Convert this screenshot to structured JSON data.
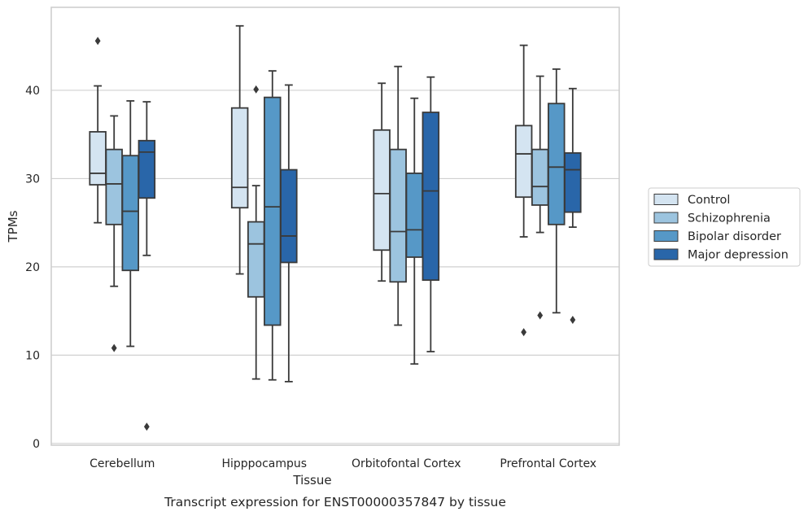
{
  "caption": "Transcript expression for ENST00000357847 by tissue",
  "chart_data": {
    "type": "box",
    "xlabel": "Tissue",
    "ylabel": "TPMs",
    "ylim": [
      -0.2,
      49.4
    ],
    "yticks": [
      0,
      10,
      20,
      30,
      40
    ],
    "grid": "horizontal",
    "legend_position": "right",
    "categories": [
      "Cerebellum",
      "Hipppocampus",
      "Orbitofontal Cortex",
      "Prefrontal Cortex"
    ],
    "series": [
      {
        "name": "Control",
        "color": "#d4e4f1",
        "boxes": [
          {
            "whisker_low": 25.0,
            "q1": 29.3,
            "median": 30.6,
            "q3": 35.3,
            "whisker_high": 40.5,
            "outliers": [
              45.6
            ]
          },
          {
            "whisker_low": 19.2,
            "q1": 26.7,
            "median": 29.0,
            "q3": 38.0,
            "whisker_high": 47.3,
            "outliers": []
          },
          {
            "whisker_low": 18.4,
            "q1": 21.9,
            "median": 28.3,
            "q3": 35.5,
            "whisker_high": 40.8,
            "outliers": []
          },
          {
            "whisker_low": 23.4,
            "q1": 27.9,
            "median": 32.8,
            "q3": 36.0,
            "whisker_high": 45.1,
            "outliers": [
              12.6
            ]
          }
        ]
      },
      {
        "name": "Schizophrenia",
        "color": "#9cc4df",
        "boxes": [
          {
            "whisker_low": 17.8,
            "q1": 24.8,
            "median": 29.4,
            "q3": 33.3,
            "whisker_high": 37.1,
            "outliers": [
              10.8
            ]
          },
          {
            "whisker_low": 7.3,
            "q1": 16.6,
            "median": 22.6,
            "q3": 25.1,
            "whisker_high": 29.2,
            "outliers": [
              40.1
            ]
          },
          {
            "whisker_low": 13.4,
            "q1": 18.3,
            "median": 24.0,
            "q3": 33.3,
            "whisker_high": 42.7,
            "outliers": []
          },
          {
            "whisker_low": 23.9,
            "q1": 27.0,
            "median": 29.1,
            "q3": 33.3,
            "whisker_high": 41.6,
            "outliers": [
              14.5
            ]
          }
        ]
      },
      {
        "name": "Bipolar disorder",
        "color": "#5698c7",
        "boxes": [
          {
            "whisker_low": 11.0,
            "q1": 19.6,
            "median": 26.3,
            "q3": 32.6,
            "whisker_high": 38.8,
            "outliers": []
          },
          {
            "whisker_low": 7.2,
            "q1": 13.4,
            "median": 26.8,
            "q3": 39.2,
            "whisker_high": 42.2,
            "outliers": []
          },
          {
            "whisker_low": 9.0,
            "q1": 21.1,
            "median": 24.2,
            "q3": 30.6,
            "whisker_high": 39.1,
            "outliers": []
          },
          {
            "whisker_low": 14.8,
            "q1": 24.8,
            "median": 31.3,
            "q3": 38.5,
            "whisker_high": 42.4,
            "outliers": []
          }
        ]
      },
      {
        "name": "Major depression",
        "color": "#2966a9",
        "boxes": [
          {
            "whisker_low": 21.3,
            "q1": 27.8,
            "median": 33.0,
            "q3": 34.3,
            "whisker_high": 38.7,
            "outliers": [
              1.9
            ]
          },
          {
            "whisker_low": 7.0,
            "q1": 20.5,
            "median": 23.5,
            "q3": 31.0,
            "whisker_high": 40.6,
            "outliers": []
          },
          {
            "whisker_low": 10.4,
            "q1": 18.5,
            "median": 28.6,
            "q3": 37.5,
            "whisker_high": 41.5,
            "outliers": []
          },
          {
            "whisker_low": 24.5,
            "q1": 26.2,
            "median": 31.0,
            "q3": 32.9,
            "whisker_high": 40.2,
            "outliers": [
              14.0
            ]
          }
        ]
      }
    ]
  }
}
